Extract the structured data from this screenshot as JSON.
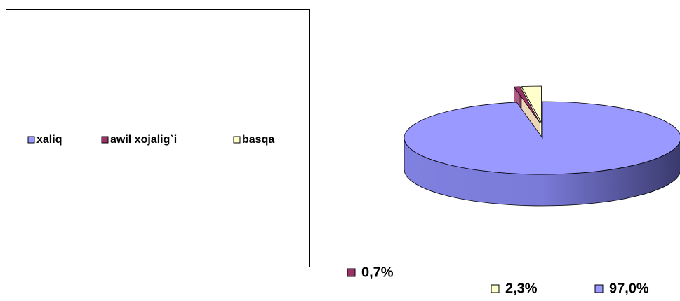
{
  "chart_data": {
    "type": "pie3d",
    "categories": [
      "xaliq",
      "awil xojalig`i",
      "basqa"
    ],
    "values": [
      97.0,
      0.7,
      2.3
    ],
    "value_labels": [
      "97,0%",
      "0,7%",
      "2,3%"
    ],
    "colors": [
      "#9999ff",
      "#993366",
      "#ffffcc"
    ],
    "legend": "left"
  }
}
